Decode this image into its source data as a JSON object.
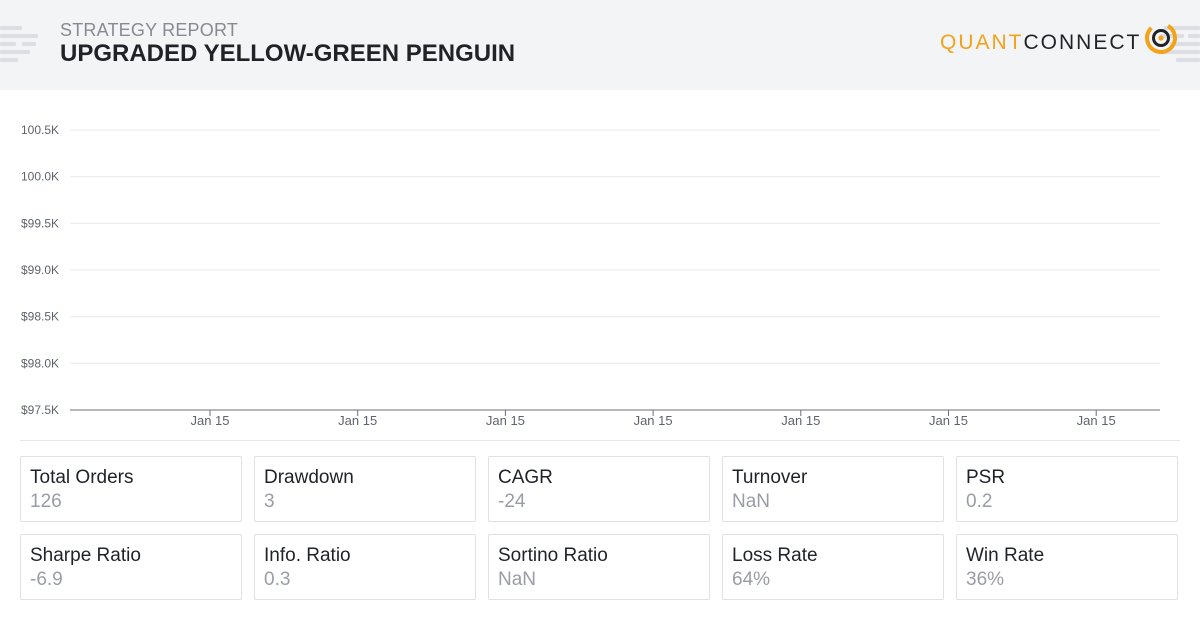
{
  "header": {
    "subtitle": "STRATEGY REPORT",
    "title": "UPGRADED YELLOW-GREEN PENGUIN",
    "logo_quant": "QUANT",
    "logo_connect": "CONNECT",
    "logo_icon": "quantconnect-logo-icon",
    "brand_color": "#f5a21b"
  },
  "chart_data": {
    "type": "line",
    "title": "",
    "xlabel": "",
    "ylabel": "",
    "y_tick_labels": [
      "100.5K",
      "100.0K",
      "$99.5K",
      "$99.0K",
      "$98.5K",
      "$98.0K",
      "$97.5K"
    ],
    "y_ticks": [
      100500,
      100000,
      99500,
      99000,
      98500,
      98000,
      97500
    ],
    "ylim": [
      97500,
      100500
    ],
    "x_tick_labels": [
      "Jan 15",
      "Jan 15",
      "Jan 15",
      "Jan 15",
      "Jan 15",
      "Jan 15",
      "Jan 15"
    ],
    "series": [],
    "grid": true,
    "gridline_color": "#e8e9ec"
  },
  "stats": [
    {
      "label": "Total Orders",
      "value": "126"
    },
    {
      "label": "Drawdown",
      "value": "3"
    },
    {
      "label": "CAGR",
      "value": "-24"
    },
    {
      "label": "Turnover",
      "value": "NaN"
    },
    {
      "label": "PSR",
      "value": "0.2"
    },
    {
      "label": "Sharpe Ratio",
      "value": "-6.9"
    },
    {
      "label": "Info. Ratio",
      "value": "0.3"
    },
    {
      "label": "Sortino Ratio",
      "value": "NaN"
    },
    {
      "label": "Loss Rate",
      "value": "64%"
    },
    {
      "label": "Win Rate",
      "value": "36%"
    }
  ]
}
